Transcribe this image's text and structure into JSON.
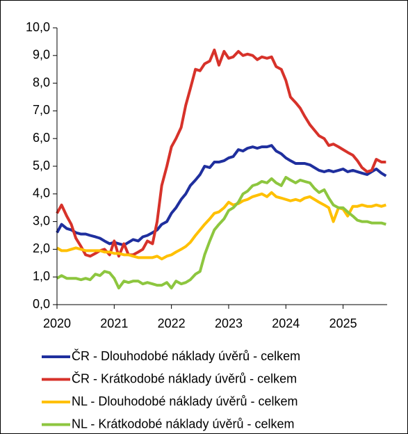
{
  "chart_data": {
    "type": "line",
    "x": [
      2020,
      2020.08,
      2020.17,
      2020.25,
      2020.33,
      2020.42,
      2020.5,
      2020.58,
      2020.67,
      2020.75,
      2020.83,
      2020.92,
      2021,
      2021.08,
      2021.17,
      2021.25,
      2021.33,
      2021.42,
      2021.5,
      2021.58,
      2021.67,
      2021.75,
      2021.83,
      2021.92,
      2022,
      2022.08,
      2022.17,
      2022.25,
      2022.33,
      2022.42,
      2022.5,
      2022.58,
      2022.67,
      2022.75,
      2022.83,
      2022.92,
      2023,
      2023.08,
      2023.17,
      2023.25,
      2023.33,
      2023.42,
      2023.5,
      2023.58,
      2023.67,
      2023.75,
      2023.83,
      2023.92,
      2024,
      2024.08,
      2024.17,
      2024.25,
      2024.33,
      2024.42,
      2024.5,
      2024.58,
      2024.67,
      2024.75,
      2024.83,
      2024.92,
      2025,
      2025.08,
      2025.17,
      2025.25,
      2025.33,
      2025.42,
      2025.5,
      2025.58,
      2025.67,
      2025.75
    ],
    "series": [
      {
        "name": "ČR - Dlouhodobé náklady úvěrů - celkem",
        "color": "#1f2f9e",
        "values": [
          2.6,
          2.9,
          2.75,
          2.7,
          2.6,
          2.55,
          2.55,
          2.5,
          2.45,
          2.4,
          2.3,
          2.2,
          2.25,
          2.2,
          2.15,
          2.25,
          2.35,
          2.3,
          2.45,
          2.5,
          2.6,
          2.7,
          2.9,
          3.0,
          3.3,
          3.5,
          3.8,
          4.0,
          4.3,
          4.5,
          4.7,
          5.0,
          4.95,
          5.15,
          5.15,
          5.2,
          5.3,
          5.35,
          5.6,
          5.55,
          5.65,
          5.7,
          5.65,
          5.7,
          5.7,
          5.75,
          5.55,
          5.45,
          5.3,
          5.2,
          5.1,
          5.1,
          5.1,
          5.05,
          4.95,
          4.85,
          4.8,
          4.85,
          4.8,
          4.85,
          4.9,
          4.8,
          4.85,
          4.8,
          4.75,
          4.7,
          4.8,
          4.9,
          4.75,
          4.65
        ]
      },
      {
        "name": "ČR - Krátkodobé náklady úvěrů - celkem",
        "color": "#d7322a",
        "values": [
          3.3,
          3.6,
          3.2,
          2.9,
          2.4,
          2.1,
          1.8,
          1.75,
          1.85,
          1.95,
          2.0,
          1.8,
          2.3,
          1.75,
          2.2,
          1.8,
          1.8,
          1.9,
          2.0,
          2.3,
          2.2,
          3.0,
          4.3,
          5.0,
          5.7,
          6.0,
          6.4,
          7.2,
          7.8,
          8.5,
          8.45,
          8.7,
          8.8,
          9.2,
          8.65,
          9.15,
          8.9,
          8.95,
          9.15,
          9.0,
          9.05,
          9.0,
          8.85,
          8.95,
          8.9,
          8.95,
          8.6,
          8.5,
          8.1,
          7.5,
          7.3,
          7.1,
          6.8,
          6.5,
          6.3,
          6.1,
          6.0,
          5.75,
          5.8,
          5.7,
          5.6,
          5.5,
          5.4,
          5.2,
          4.95,
          4.8,
          4.85,
          5.25,
          5.15,
          5.15
        ]
      },
      {
        "name": "NL - Dlouhodobé náklady úvěrů - celkem",
        "color": "#ffc000",
        "values": [
          2.05,
          1.95,
          1.95,
          2.0,
          2.05,
          2.0,
          1.95,
          1.95,
          1.95,
          1.95,
          1.9,
          1.9,
          1.85,
          1.85,
          1.8,
          1.8,
          1.75,
          1.7,
          1.7,
          1.7,
          1.7,
          1.75,
          1.65,
          1.75,
          1.8,
          1.9,
          2.0,
          2.1,
          2.25,
          2.5,
          2.7,
          2.9,
          3.1,
          3.3,
          3.35,
          3.5,
          3.7,
          3.6,
          3.65,
          3.75,
          3.8,
          3.9,
          3.95,
          4.0,
          3.9,
          4.05,
          3.9,
          3.85,
          3.8,
          3.75,
          3.8,
          3.75,
          3.85,
          3.9,
          3.8,
          3.7,
          3.6,
          3.5,
          3.0,
          3.5,
          3.45,
          3.2,
          3.55,
          3.55,
          3.6,
          3.55,
          3.55,
          3.6,
          3.55,
          3.6
        ]
      },
      {
        "name": "NL - Krátkodobé náklady úvěrů - celkem",
        "color": "#8dc63f",
        "values": [
          0.95,
          1.05,
          0.95,
          0.95,
          0.95,
          0.9,
          0.95,
          0.9,
          1.1,
          1.05,
          1.2,
          1.15,
          0.95,
          0.6,
          0.85,
          0.8,
          0.85,
          0.85,
          0.75,
          0.8,
          0.75,
          0.7,
          0.7,
          0.8,
          0.6,
          0.85,
          0.75,
          0.8,
          0.9,
          1.1,
          1.2,
          1.8,
          2.3,
          2.7,
          2.9,
          3.1,
          3.4,
          3.5,
          3.7,
          4.0,
          4.1,
          4.3,
          4.35,
          4.45,
          4.4,
          4.55,
          4.4,
          4.3,
          4.6,
          4.5,
          4.4,
          4.5,
          4.45,
          4.4,
          4.2,
          4.05,
          4.15,
          3.85,
          3.6,
          3.5,
          3.5,
          3.35,
          3.2,
          3.05,
          3.0,
          3.0,
          2.95,
          2.95,
          2.95,
          2.9
        ]
      }
    ],
    "xlim": [
      2020,
      2025.77
    ],
    "xticks": [
      2020,
      2021,
      2022,
      2023,
      2024,
      2025
    ],
    "ylim": [
      0,
      10
    ],
    "yticks": [
      {
        "value": 0,
        "label": "0,0"
      },
      {
        "value": 1,
        "label": "1,0"
      },
      {
        "value": 2,
        "label": "2,0"
      },
      {
        "value": 3,
        "label": "3,0"
      },
      {
        "value": 4,
        "label": "4,0"
      },
      {
        "value": 5,
        "label": "5,0"
      },
      {
        "value": 6,
        "label": "6,0"
      },
      {
        "value": 7,
        "label": "7,0"
      },
      {
        "value": 8,
        "label": "8,0"
      },
      {
        "value": 9,
        "label": "9,0"
      },
      {
        "value": 10,
        "label": "10,0"
      }
    ],
    "grid": false
  }
}
